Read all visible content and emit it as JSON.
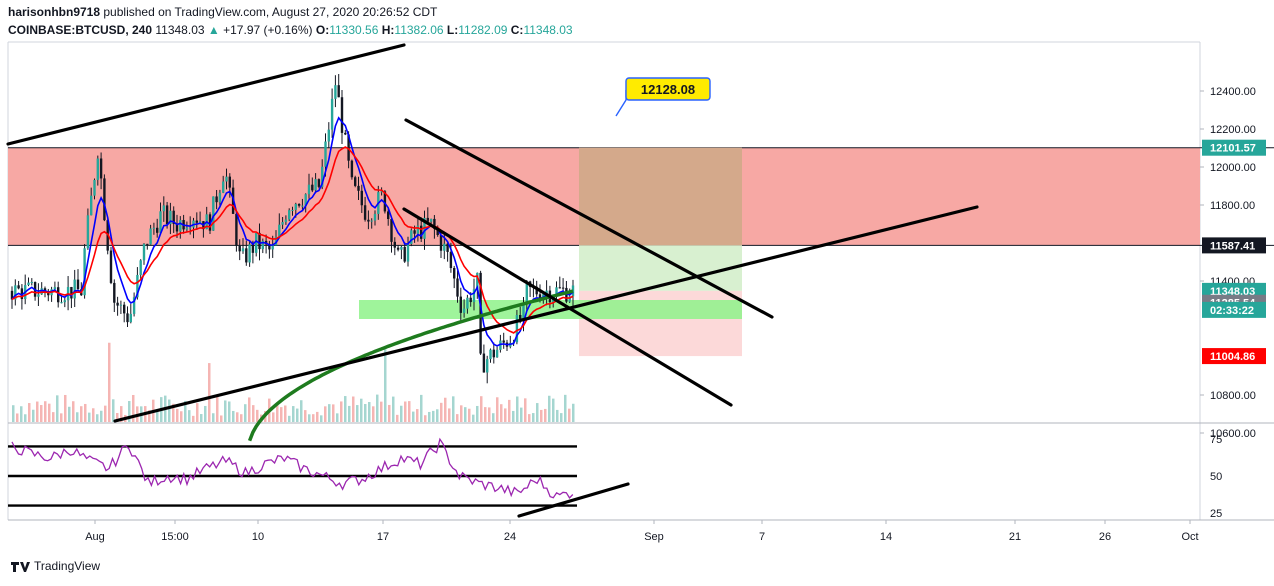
{
  "header": {
    "author": "harisonhbn9718",
    "published_text": "published on TradingView.com, August 27, 2020 20:26:52 CDT",
    "symbol": "COINBASE:BTCUSD, 240",
    "last": "11348.03",
    "arrow": "▲",
    "change": "+17.97 (+0.16%)",
    "o_label": "O:",
    "o_value": "11330.56",
    "h_label": "H:",
    "h_value": "11382.06",
    "l_label": "L:",
    "l_value": "11282.09",
    "c_label": "C:",
    "c_value": "11348.03"
  },
  "footer": {
    "brand": "TradingView"
  },
  "colors": {
    "up": "#26a69a",
    "down": "#ef5350",
    "candle": "#131722",
    "ema_fast": "#0000ff",
    "ema_slow": "#ff0000",
    "sma_long": "#1e7b1e",
    "resistance_zone": "#f7a8a4",
    "target_zone": "#d4a98b",
    "reward_zone": "#d8f0d0",
    "risk_zone": "#fcd9d9",
    "support_zone": "#8ef28a",
    "rsi": "#9c27b0",
    "trendline": "#000000",
    "callout": "#ffeb00"
  },
  "chart_data": [
    {
      "type": "candlestick",
      "title": "COINBASE:BTCUSD, 240",
      "y_axis": {
        "range": [
          10500,
          12560
        ],
        "ticks": [
          10600,
          10800,
          11000,
          11200,
          11400,
          11600,
          11800,
          12000,
          12200,
          12400
        ],
        "visible_tick_labels": [
          "12400.00",
          "12200.00",
          "12000.00",
          "11800.00",
          "11400.00",
          "10800.00",
          "10600.00"
        ]
      },
      "x_axis": {
        "tick_labels": [
          "Aug",
          "15:00",
          "10",
          "17",
          "24",
          "Sep",
          "7",
          "14",
          "21",
          "26",
          "Oct"
        ]
      },
      "close_path": [
        [
          "Jul 27",
          10950
        ],
        [
          "Jul 29",
          11100
        ],
        [
          "Jul 30",
          11250
        ],
        [
          "Aug 1",
          11450
        ],
        [
          "Aug 2",
          12100
        ],
        [
          "Aug 3",
          11300
        ],
        [
          "Aug 4",
          11200
        ],
        [
          "Aug 5",
          11600
        ],
        [
          "Aug 6",
          11750
        ],
        [
          "Aug 7",
          11700
        ],
        [
          "Aug 8",
          11750
        ],
        [
          "Aug 9",
          11700
        ],
        [
          "Aug 10",
          12000
        ],
        [
          "Aug 11",
          11500
        ],
        [
          "Aug 12",
          11600
        ],
        [
          "Aug 13",
          11550
        ],
        [
          "Aug 14",
          11800
        ],
        [
          "Aug 15",
          11850
        ],
        [
          "Aug 16",
          11900
        ],
        [
          "Aug 17",
          12450
        ],
        [
          "Aug 18",
          11900
        ],
        [
          "Aug 19",
          11750
        ],
        [
          "Aug 20",
          11850
        ],
        [
          "Aug 21",
          11500
        ],
        [
          "Aug 22",
          11650
        ],
        [
          "Aug 23",
          11700
        ],
        [
          "Aug 24",
          11550
        ],
        [
          "Aug 25",
          11250
        ],
        [
          "Aug 26",
          11400
        ],
        [
          "Aug 27",
          11348.03
        ]
      ],
      "price_labels": [
        {
          "value": 12101.57,
          "text": "12101.57",
          "color": "#26a69a"
        },
        {
          "value": 11587.41,
          "text": "11587.41",
          "color": "#131722"
        },
        {
          "value": 11348.03,
          "text": "11348.03",
          "color": "#26a69a"
        },
        {
          "value": 11285.54,
          "text": "11285.54",
          "color": "#787b86"
        },
        {
          "value": 11004.86,
          "text": "11004.86",
          "color": "#ff0000"
        }
      ],
      "countdown": "02:33:22",
      "callout": {
        "value": 12128.08,
        "text": "12128.08"
      },
      "zones": {
        "resistance": [
          11587.41,
          12101.57
        ],
        "reward": [
          11348.03,
          12101.57
        ],
        "risk": [
          11004.86,
          11348.03
        ],
        "support": [
          11200,
          11300
        ]
      }
    },
    {
      "type": "line",
      "name": "RSI",
      "y_axis": {
        "ticks": [
          25,
          50,
          75
        ]
      },
      "levels": [
        30,
        50,
        70
      ],
      "values": [
        70,
        65,
        62,
        68,
        60,
        55,
        72,
        45,
        50,
        48,
        55,
        60,
        52,
        58,
        62,
        55,
        50,
        45,
        48,
        55,
        62,
        58,
        72,
        50,
        45,
        42,
        38,
        48,
        36,
        40
      ]
    }
  ]
}
